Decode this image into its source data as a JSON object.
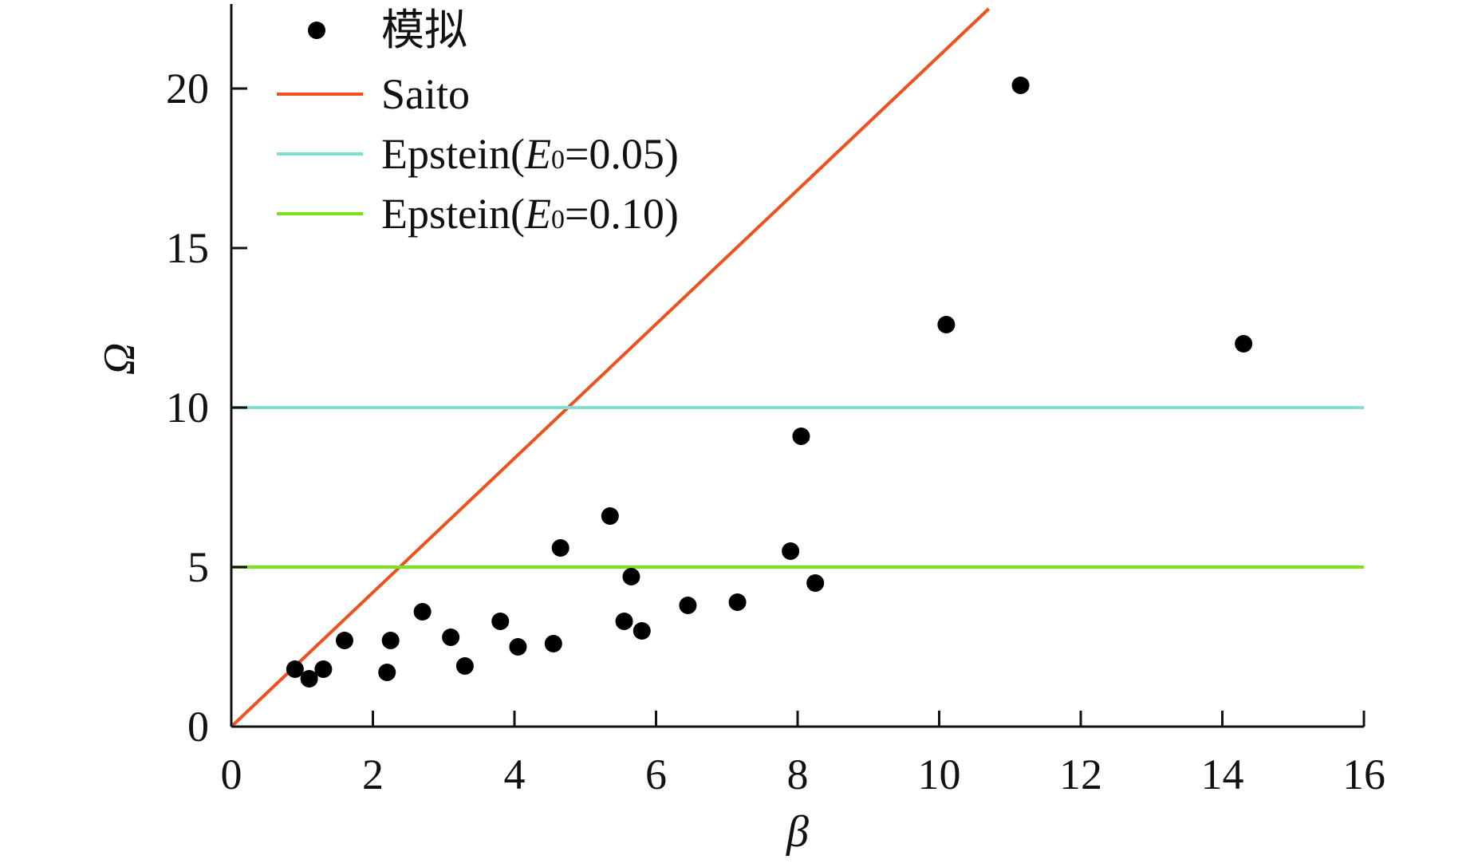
{
  "chart_data": {
    "type": "scatter",
    "xlabel": "β",
    "ylabel": "Ω",
    "xlim": [
      0,
      16
    ],
    "ylim": [
      0,
      22.5
    ],
    "xticks": [
      0,
      2,
      4,
      6,
      8,
      10,
      12,
      14,
      16
    ],
    "yticks": [
      0,
      5,
      10,
      15,
      20
    ],
    "legend_position": "top-left",
    "grid": false,
    "series": [
      {
        "name": "模拟",
        "kind": "scatter",
        "color": "#000000",
        "points": [
          [
            0.9,
            1.8
          ],
          [
            1.1,
            1.5
          ],
          [
            1.3,
            1.8
          ],
          [
            1.6,
            2.7
          ],
          [
            2.2,
            1.7
          ],
          [
            2.25,
            2.7
          ],
          [
            2.7,
            3.6
          ],
          [
            3.1,
            2.8
          ],
          [
            3.3,
            1.9
          ],
          [
            3.8,
            3.3
          ],
          [
            4.05,
            2.5
          ],
          [
            4.55,
            2.6
          ],
          [
            4.65,
            5.6
          ],
          [
            5.35,
            6.6
          ],
          [
            5.55,
            3.3
          ],
          [
            5.65,
            4.7
          ],
          [
            5.8,
            3.0
          ],
          [
            6.45,
            3.8
          ],
          [
            7.15,
            3.9
          ],
          [
            7.9,
            5.5
          ],
          [
            8.05,
            9.1
          ],
          [
            8.25,
            4.5
          ],
          [
            10.1,
            12.6
          ],
          [
            11.15,
            20.1
          ],
          [
            14.3,
            12.0
          ]
        ]
      },
      {
        "name": "Saito",
        "kind": "line",
        "color": "#f0501e",
        "points": [
          [
            0,
            0
          ],
          [
            10.7,
            22.5
          ]
        ]
      },
      {
        "name": "Epstein(E0=0.05)",
        "name_prefix": "Epstein(",
        "name_italic": "E",
        "name_sub": "0",
        "name_suffix": "=0.05)",
        "kind": "line",
        "color": "#7fe0d0",
        "points": [
          [
            0,
            10
          ],
          [
            16,
            10
          ]
        ]
      },
      {
        "name": "Epstein(E0=0.10)",
        "name_prefix": "Epstein(",
        "name_italic": "E",
        "name_sub": "0",
        "name_suffix": "=0.10)",
        "kind": "line",
        "color": "#7ee11e",
        "points": [
          [
            0,
            5
          ],
          [
            16,
            5
          ]
        ]
      }
    ]
  }
}
